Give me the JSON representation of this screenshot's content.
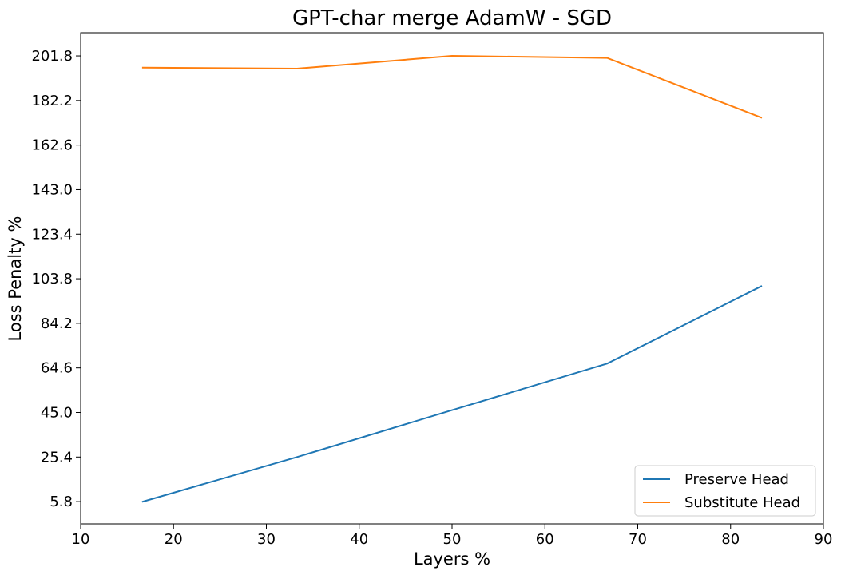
{
  "chart_data": {
    "type": "line",
    "title": "GPT-char merge AdamW - SGD",
    "xlabel": "Layers %",
    "ylabel": "Loss Penalty %",
    "xlim": [
      10,
      90
    ],
    "ylim": [
      -4.0,
      212.0
    ],
    "xticks": [
      10,
      20,
      30,
      40,
      50,
      60,
      70,
      80,
      90
    ],
    "yticks": [
      5.8,
      25.4,
      45.0,
      64.6,
      84.2,
      103.8,
      123.4,
      143.0,
      162.6,
      182.2,
      201.8
    ],
    "ytick_labels": [
      "5.8",
      "25.4",
      "45.0",
      "64.6",
      "84.2",
      "103.8",
      "123.4",
      "143.0",
      "162.6",
      "182.2",
      "201.8"
    ],
    "x": [
      16.7,
      33.3,
      50.0,
      66.7,
      83.3
    ],
    "series": [
      {
        "name": "Preserve Head",
        "color": "#1f77b4",
        "values": [
          5.8,
          25.4,
          46.0,
          66.5,
          100.5
        ]
      },
      {
        "name": "Substitute Head",
        "color": "#ff7f0e",
        "values": [
          196.6,
          196.2,
          201.8,
          200.9,
          174.7
        ]
      }
    ],
    "grid": false,
    "legend_position": "lower-right"
  }
}
